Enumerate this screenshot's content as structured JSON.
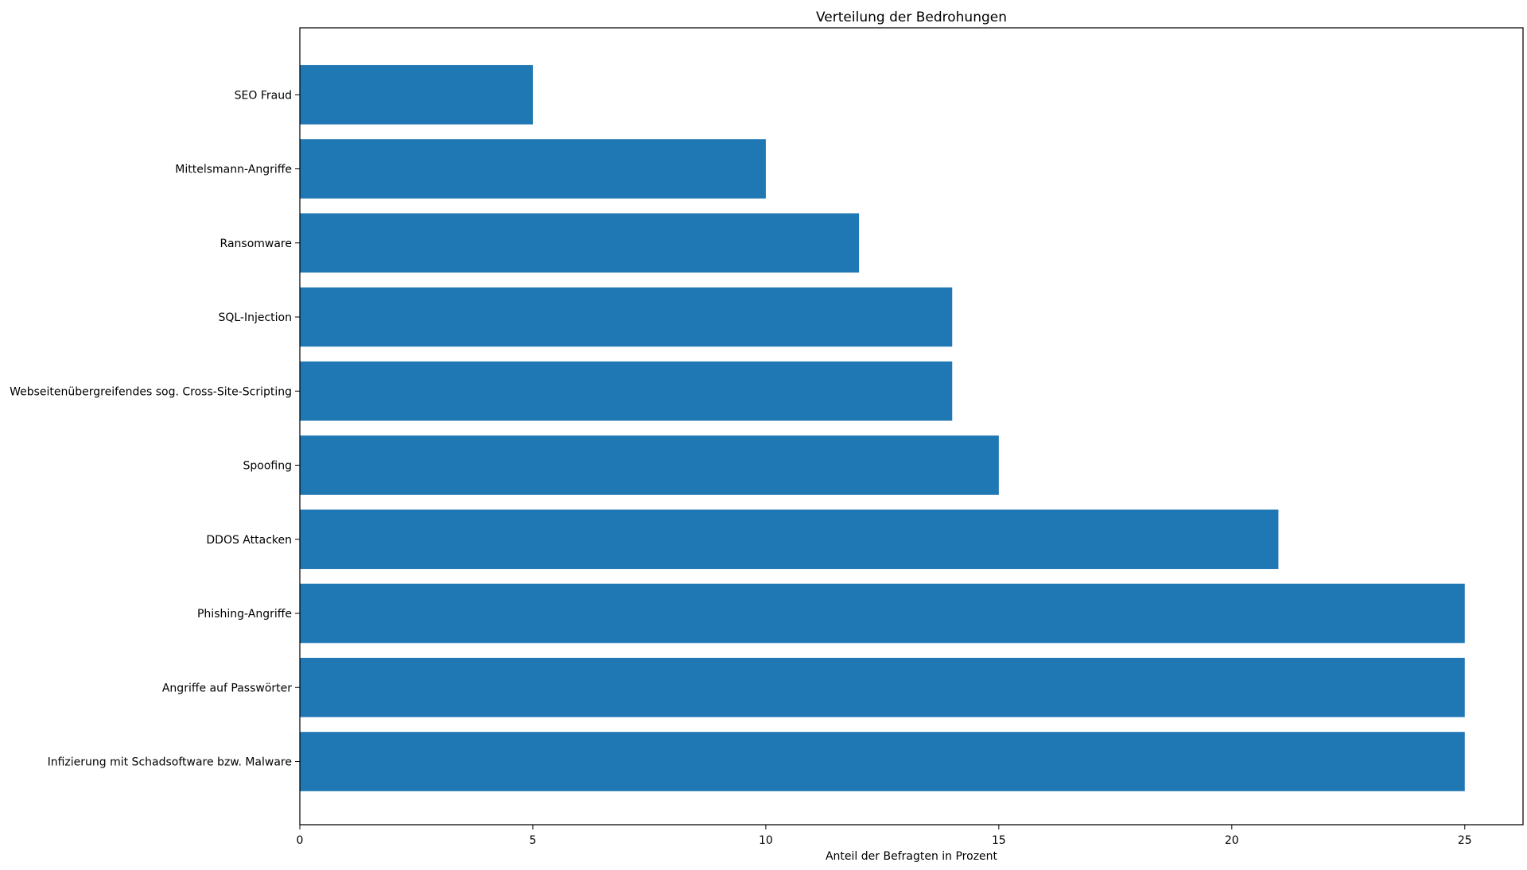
{
  "chart_data": {
    "type": "bar",
    "orientation": "horizontal",
    "title": "Verteilung der Bedrohungen",
    "xlabel": "Anteil der Befragten in Prozent",
    "ylabel": "",
    "categories": [
      "Infizierung mit Schadsoftware bzw. Malware",
      "Angriffe auf Passwörter",
      "Phishing-Angriffe",
      "DDOS Attacken",
      "Spoofing",
      "Webseitenübergreifendes sog. Cross-Site-Scripting",
      "SQL-Injection",
      "Ransomware",
      "Mittelsmann-Angriffe",
      "SEO Fraud"
    ],
    "values": [
      25,
      25,
      25,
      21,
      15,
      14,
      14,
      12,
      10,
      5
    ],
    "xlim": [
      0,
      26.25
    ],
    "xticks": [
      0,
      5,
      10,
      15,
      20,
      25
    ],
    "xtick_labels": [
      "0",
      "5",
      "10",
      "15",
      "20",
      "25"
    ],
    "grid": false,
    "legend": "none",
    "bar_color": "#1f77b4"
  }
}
